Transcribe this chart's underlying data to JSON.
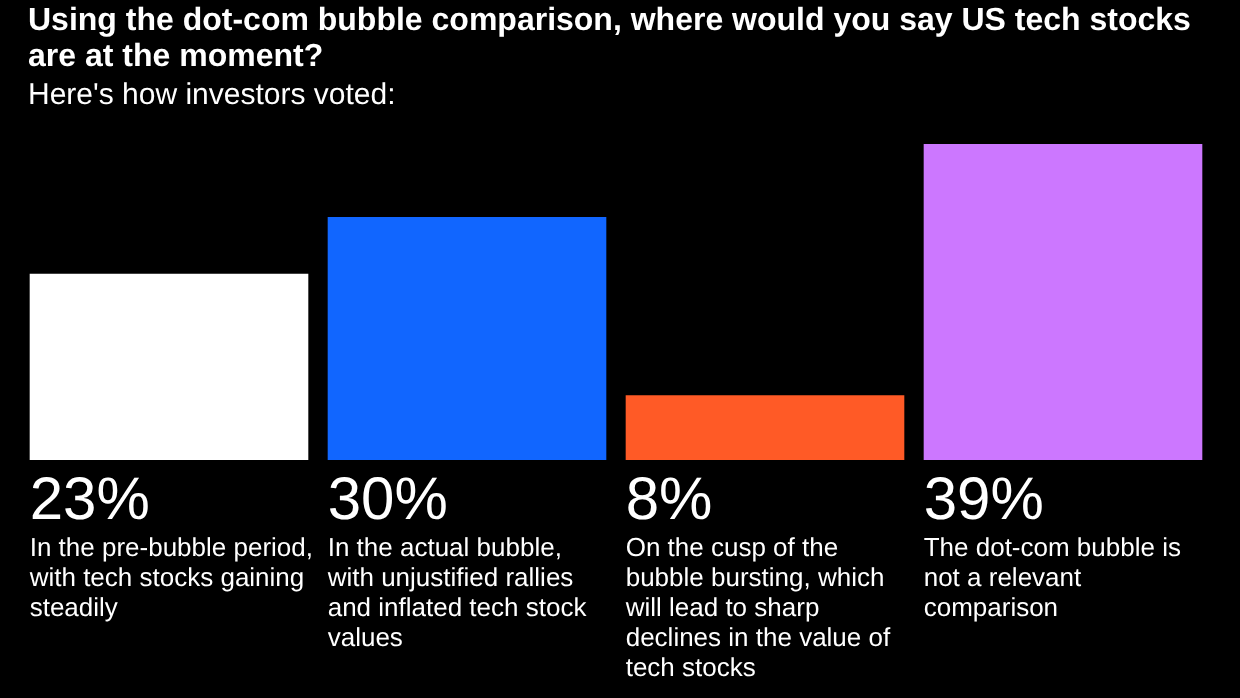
{
  "chart_data": {
    "type": "bar",
    "title": "Using the dot-com bubble comparison, where would you say US tech stocks are at the moment?",
    "subtitle": "Here's how investors voted:",
    "categories": [
      "In the pre-bubble period, with tech stocks gaining steadily",
      "In the actual bubble, with unjustified rallies and inflated tech stock values",
      "On the cusp of the bubble bursting, which will lead to sharp declines in the value of tech stocks",
      "The dot-com bubble is not a relevant comparison"
    ],
    "values": [
      23,
      30,
      8,
      39
    ],
    "colors": [
      "#ffffff",
      "#1166ff",
      "#ff5a26",
      "#cc77ff"
    ],
    "value_labels": [
      "23%",
      "30%",
      "8%",
      "39%"
    ]
  }
}
